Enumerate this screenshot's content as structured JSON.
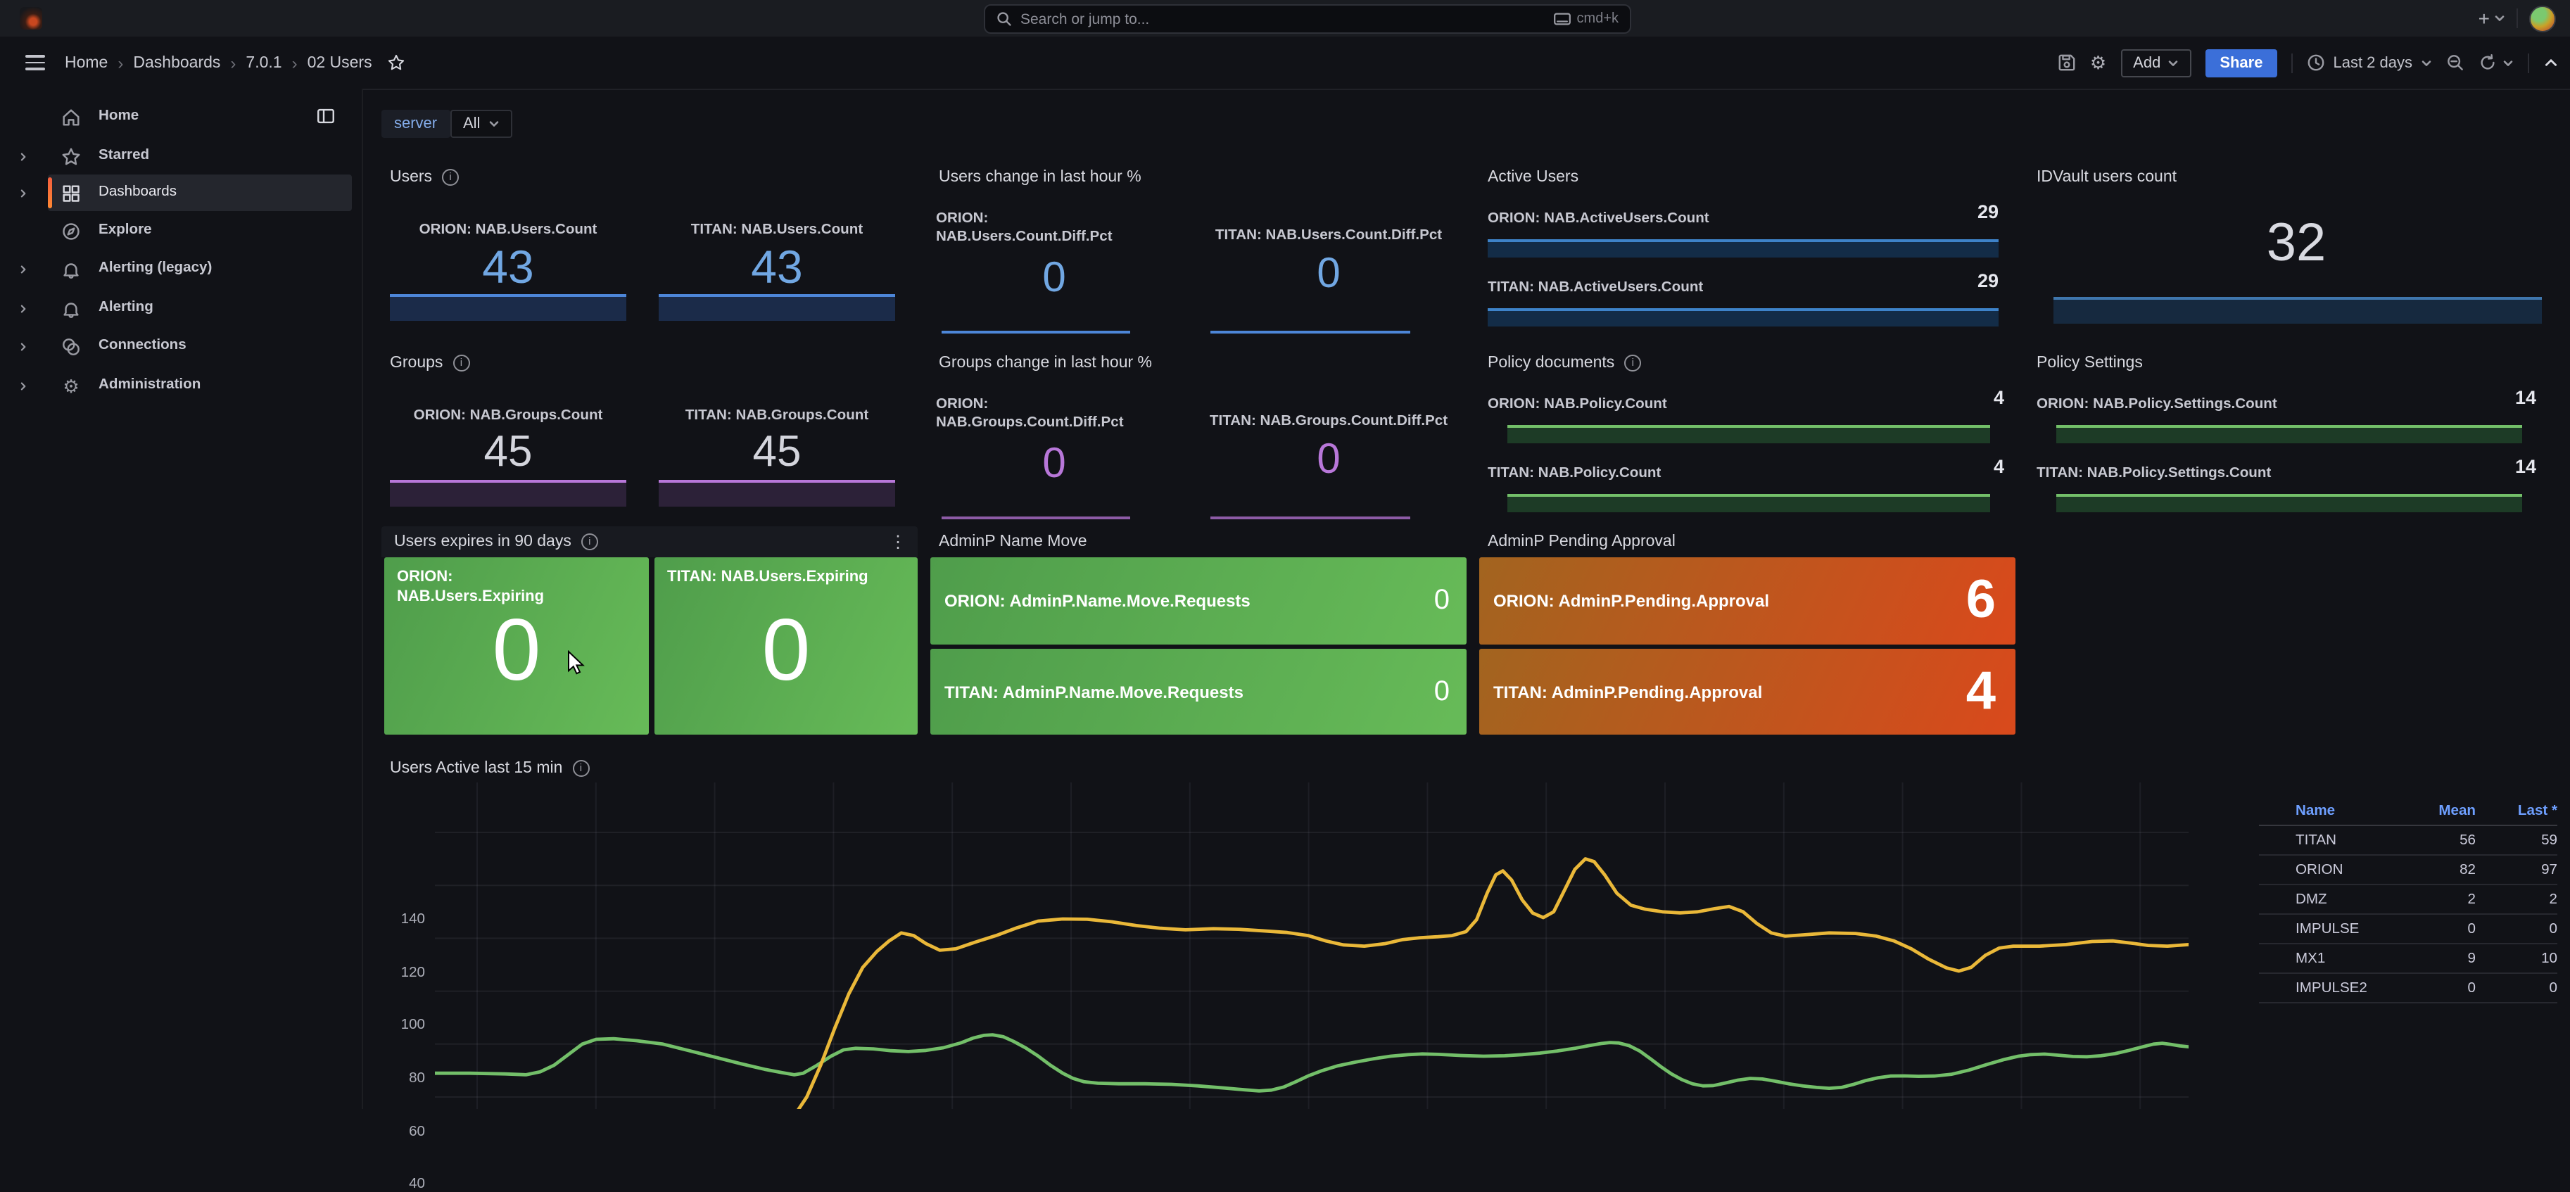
{
  "icons": {
    "separator": "›",
    "kebab": "⋮",
    "info": "i",
    "plus": "+",
    "gear": "⚙"
  },
  "topbar": {
    "search_placeholder": "Search or jump to...",
    "search_shortcut": "cmd+k"
  },
  "breadcrumb": {
    "items": [
      "Home",
      "Dashboards",
      "7.0.1",
      "02 Users"
    ]
  },
  "toolbar": {
    "add_label": "Add",
    "share_label": "Share",
    "time_range": "Last 2 days"
  },
  "sidebar": {
    "items": [
      {
        "label": "Home"
      },
      {
        "label": "Starred"
      },
      {
        "label": "Dashboards",
        "active": true
      },
      {
        "label": "Explore"
      },
      {
        "label": "Alerting (legacy)"
      },
      {
        "label": "Alerting"
      },
      {
        "label": "Connections"
      },
      {
        "label": "Administration"
      }
    ]
  },
  "filters": {
    "variable_label": "server",
    "variable_value": "All"
  },
  "panels": {
    "users": {
      "title": "Users",
      "stats": [
        {
          "label": "ORION: NAB.Users.Count",
          "value": "43"
        },
        {
          "label": "TITAN: NAB.Users.Count",
          "value": "43"
        }
      ]
    },
    "users_change": {
      "title": "Users change in last hour %",
      "stats": [
        {
          "label": "ORION: NAB.Users.Count.Diff.Pct",
          "value": "0"
        },
        {
          "label": "TITAN: NAB.Users.Count.Diff.Pct",
          "value": "0"
        }
      ]
    },
    "active_users": {
      "title": "Active Users",
      "rows": [
        {
          "label": "ORION: NAB.ActiveUsers.Count",
          "value": "29"
        },
        {
          "label": "TITAN: NAB.ActiveUsers.Count",
          "value": "29"
        }
      ]
    },
    "idvault": {
      "title": "IDVault users count",
      "value": "32"
    },
    "groups": {
      "title": "Groups",
      "stats": [
        {
          "label": "ORION: NAB.Groups.Count",
          "value": "45"
        },
        {
          "label": "TITAN: NAB.Groups.Count",
          "value": "45"
        }
      ]
    },
    "groups_change": {
      "title": "Groups change in last hour %",
      "stats": [
        {
          "label": "ORION: NAB.Groups.Count.Diff.Pct",
          "value": "0"
        },
        {
          "label": "TITAN: NAB.Groups.Count.Diff.Pct",
          "value": "0"
        }
      ]
    },
    "policy_documents": {
      "title": "Policy documents",
      "rows": [
        {
          "label": "ORION: NAB.Policy.Count",
          "value": "4"
        },
        {
          "label": "TITAN: NAB.Policy.Count",
          "value": "4"
        }
      ]
    },
    "policy_settings": {
      "title": "Policy Settings",
      "rows": [
        {
          "label": "ORION: NAB.Policy.Settings.Count",
          "value": "14"
        },
        {
          "label": "TITAN: NAB.Policy.Settings.Count",
          "value": "14"
        }
      ]
    },
    "users_expiring": {
      "title": "Users expires in 90 days",
      "tiles": [
        {
          "label": "ORION: NAB.Users.Expiring",
          "value": "0"
        },
        {
          "label": "TITAN: NAB.Users.Expiring",
          "value": "0"
        }
      ]
    },
    "adminp_name_move": {
      "title": "AdminP Name Move",
      "tiles": [
        {
          "label": "ORION: AdminP.Name.Move.Requests",
          "value": "0"
        },
        {
          "label": "TITAN: AdminP.Name.Move.Requests",
          "value": "0"
        }
      ]
    },
    "adminp_pending": {
      "title": "AdminP Pending Approval",
      "tiles": [
        {
          "label": "ORION: AdminP.Pending.Approval",
          "value": "6"
        },
        {
          "label": "TITAN: AdminP.Pending.Approval",
          "value": "4"
        }
      ]
    },
    "users_active": {
      "title": "Users Active last 15 min"
    }
  },
  "chart_data": {
    "type": "line",
    "title": "Users Active last 15 min",
    "xlabel": "",
    "ylabel": "",
    "ylim": [
      35,
      159
    ],
    "yticks": [
      140,
      120,
      100,
      80,
      60,
      40
    ],
    "grid": true,
    "legend": {
      "position": "right-table",
      "columns": [
        "Name",
        "Mean",
        "Last *"
      ],
      "rows": [
        {
          "name": "TITAN",
          "color": "#73BF69",
          "mean": 56,
          "last": 59
        },
        {
          "name": "ORION",
          "color": "#EAB839",
          "mean": 82,
          "last": 97
        },
        {
          "name": "DMZ",
          "color": "#5794F2",
          "mean": 2,
          "last": 2
        },
        {
          "name": "IMPULSE",
          "color": "#FF780A",
          "mean": 0,
          "last": 0
        },
        {
          "name": "MX1",
          "color": "#F2495C",
          "mean": 9,
          "last": 10
        },
        {
          "name": "IMPULSE2",
          "color": "#3274D9",
          "mean": 0,
          "last": 0
        }
      ]
    },
    "series": [
      {
        "name": "DMZ",
        "color": "#5794F2",
        "points": [
          [
            0,
            2
          ],
          [
            1,
            2
          ]
        ]
      },
      {
        "name": "IMPULSE",
        "color": "#FF780A",
        "points": [
          [
            0,
            0
          ],
          [
            1,
            0
          ]
        ]
      },
      {
        "name": "IMPULSE2",
        "color": "#3274D9",
        "points": [
          [
            0,
            0
          ],
          [
            1,
            0
          ]
        ]
      },
      {
        "name": "MX1",
        "color": "#F2495C",
        "points": [
          [
            0,
            9
          ],
          [
            0.5,
            9
          ],
          [
            1,
            10
          ]
        ]
      },
      {
        "name": "TITAN",
        "color": "#73BF69",
        "points": [
          [
            0.0,
            49
          ],
          [
            0.02,
            49
          ],
          [
            0.04,
            48.7
          ],
          [
            0.052,
            48.4
          ],
          [
            0.06,
            49.5
          ],
          [
            0.068,
            52
          ],
          [
            0.076,
            56
          ],
          [
            0.084,
            60
          ],
          [
            0.092,
            61.8
          ],
          [
            0.102,
            62
          ],
          [
            0.115,
            61.3
          ],
          [
            0.13,
            60
          ],
          [
            0.145,
            57.5
          ],
          [
            0.16,
            55
          ],
          [
            0.175,
            52.5
          ],
          [
            0.188,
            50.5
          ],
          [
            0.198,
            49.2
          ],
          [
            0.205,
            48.4
          ],
          [
            0.21,
            49
          ],
          [
            0.218,
            52
          ],
          [
            0.226,
            55.5
          ],
          [
            0.233,
            57.8
          ],
          [
            0.24,
            58.4
          ],
          [
            0.25,
            58.2
          ],
          [
            0.26,
            57.5
          ],
          [
            0.27,
            57.2
          ],
          [
            0.28,
            57.6
          ],
          [
            0.29,
            58.6
          ],
          [
            0.3,
            60.5
          ],
          [
            0.307,
            62.3
          ],
          [
            0.313,
            63.3
          ],
          [
            0.318,
            63.5
          ],
          [
            0.324,
            62.8
          ],
          [
            0.33,
            61
          ],
          [
            0.337,
            58.5
          ],
          [
            0.344,
            55.5
          ],
          [
            0.351,
            52
          ],
          [
            0.358,
            49
          ],
          [
            0.364,
            47
          ],
          [
            0.37,
            45.8
          ],
          [
            0.378,
            45.2
          ],
          [
            0.39,
            45
          ],
          [
            0.405,
            45
          ],
          [
            0.42,
            44.8
          ],
          [
            0.435,
            44.2
          ],
          [
            0.45,
            43.4
          ],
          [
            0.462,
            42.7
          ],
          [
            0.47,
            42.3
          ],
          [
            0.477,
            42.6
          ],
          [
            0.484,
            43.8
          ],
          [
            0.491,
            45.8
          ],
          [
            0.498,
            48
          ],
          [
            0.506,
            50
          ],
          [
            0.515,
            51.8
          ],
          [
            0.525,
            53.2
          ],
          [
            0.535,
            54.4
          ],
          [
            0.545,
            55.4
          ],
          [
            0.555,
            56
          ],
          [
            0.563,
            56.3
          ],
          [
            0.572,
            56.1
          ],
          [
            0.585,
            55.7
          ],
          [
            0.598,
            55.4
          ],
          [
            0.61,
            55.6
          ],
          [
            0.62,
            56
          ],
          [
            0.63,
            56.6
          ],
          [
            0.64,
            57.4
          ],
          [
            0.65,
            58.4
          ],
          [
            0.658,
            59.4
          ],
          [
            0.665,
            60.2
          ],
          [
            0.67,
            60.6
          ],
          [
            0.675,
            60.4
          ],
          [
            0.681,
            59.4
          ],
          [
            0.687,
            57.4
          ],
          [
            0.693,
            54.5
          ],
          [
            0.699,
            51.5
          ],
          [
            0.705,
            48.8
          ],
          [
            0.711,
            46.6
          ],
          [
            0.717,
            45
          ],
          [
            0.723,
            44.2
          ],
          [
            0.729,
            44.3
          ],
          [
            0.736,
            45.3
          ],
          [
            0.743,
            46.4
          ],
          [
            0.75,
            47
          ],
          [
            0.757,
            46.8
          ],
          [
            0.764,
            46
          ],
          [
            0.772,
            45
          ],
          [
            0.78,
            44.2
          ],
          [
            0.788,
            43.6
          ],
          [
            0.795,
            43.3
          ],
          [
            0.802,
            43.6
          ],
          [
            0.809,
            44.8
          ],
          [
            0.816,
            46.2
          ],
          [
            0.823,
            47.3
          ],
          [
            0.83,
            47.9
          ],
          [
            0.838,
            48
          ],
          [
            0.846,
            47.8
          ],
          [
            0.855,
            47.9
          ],
          [
            0.865,
            48.6
          ],
          [
            0.875,
            50.2
          ],
          [
            0.885,
            52.3
          ],
          [
            0.895,
            54.2
          ],
          [
            0.903,
            55.4
          ],
          [
            0.91,
            56
          ],
          [
            0.918,
            56.2
          ],
          [
            0.926,
            55.8
          ],
          [
            0.934,
            55.3
          ],
          [
            0.942,
            55.2
          ],
          [
            0.95,
            55.6
          ],
          [
            0.958,
            56.4
          ],
          [
            0.966,
            57.6
          ],
          [
            0.974,
            59
          ],
          [
            0.98,
            60
          ],
          [
            0.985,
            60.3
          ],
          [
            0.99,
            59.9
          ],
          [
            0.995,
            59.3
          ],
          [
            1.0,
            59
          ]
        ]
      },
      {
        "name": "ORION",
        "color": "#EAB839",
        "points": [
          [
            0.205,
            33
          ],
          [
            0.212,
            40
          ],
          [
            0.22,
            52
          ],
          [
            0.228,
            66
          ],
          [
            0.236,
            79
          ],
          [
            0.244,
            89
          ],
          [
            0.252,
            95
          ],
          [
            0.259,
            99
          ],
          [
            0.266,
            102
          ],
          [
            0.273,
            101
          ],
          [
            0.28,
            98
          ],
          [
            0.288,
            95.5
          ],
          [
            0.297,
            96
          ],
          [
            0.308,
            98.5
          ],
          [
            0.32,
            101
          ],
          [
            0.332,
            104
          ],
          [
            0.344,
            106.5
          ],
          [
            0.358,
            107.3
          ],
          [
            0.372,
            107.2
          ],
          [
            0.386,
            106.2
          ],
          [
            0.4,
            104.8
          ],
          [
            0.414,
            103.8
          ],
          [
            0.428,
            103.2
          ],
          [
            0.444,
            103.6
          ],
          [
            0.458,
            103.4
          ],
          [
            0.472,
            102.8
          ],
          [
            0.486,
            102.2
          ],
          [
            0.498,
            101
          ],
          [
            0.508,
            99
          ],
          [
            0.518,
            97.5
          ],
          [
            0.53,
            97
          ],
          [
            0.542,
            98
          ],
          [
            0.552,
            99.5
          ],
          [
            0.562,
            100.2
          ],
          [
            0.572,
            100.6
          ],
          [
            0.58,
            101
          ],
          [
            0.588,
            102.5
          ],
          [
            0.594,
            107
          ],
          [
            0.6,
            117
          ],
          [
            0.605,
            124
          ],
          [
            0.609,
            125.5
          ],
          [
            0.614,
            122
          ],
          [
            0.62,
            114.5
          ],
          [
            0.626,
            109.5
          ],
          [
            0.632,
            107.8
          ],
          [
            0.638,
            110
          ],
          [
            0.644,
            118
          ],
          [
            0.65,
            126
          ],
          [
            0.656,
            130
          ],
          [
            0.661,
            129
          ],
          [
            0.667,
            124
          ],
          [
            0.674,
            117
          ],
          [
            0.682,
            112.5
          ],
          [
            0.69,
            111
          ],
          [
            0.7,
            110
          ],
          [
            0.71,
            109.6
          ],
          [
            0.72,
            110
          ],
          [
            0.73,
            111.2
          ],
          [
            0.738,
            112
          ],
          [
            0.746,
            110
          ],
          [
            0.754,
            105.5
          ],
          [
            0.762,
            102
          ],
          [
            0.77,
            100.8
          ],
          [
            0.78,
            101.3
          ],
          [
            0.795,
            102
          ],
          [
            0.81,
            101.8
          ],
          [
            0.822,
            100.8
          ],
          [
            0.832,
            99
          ],
          [
            0.842,
            96
          ],
          [
            0.852,
            92
          ],
          [
            0.862,
            88.8
          ],
          [
            0.869,
            87.6
          ],
          [
            0.876,
            89
          ],
          [
            0.884,
            93.5
          ],
          [
            0.892,
            96.3
          ],
          [
            0.9,
            97
          ],
          [
            0.915,
            97
          ],
          [
            0.93,
            97.6
          ],
          [
            0.945,
            98.8
          ],
          [
            0.957,
            99
          ],
          [
            0.967,
            98.2
          ],
          [
            0.977,
            97.3
          ],
          [
            0.988,
            97
          ],
          [
            1.0,
            97.6
          ]
        ]
      }
    ]
  }
}
